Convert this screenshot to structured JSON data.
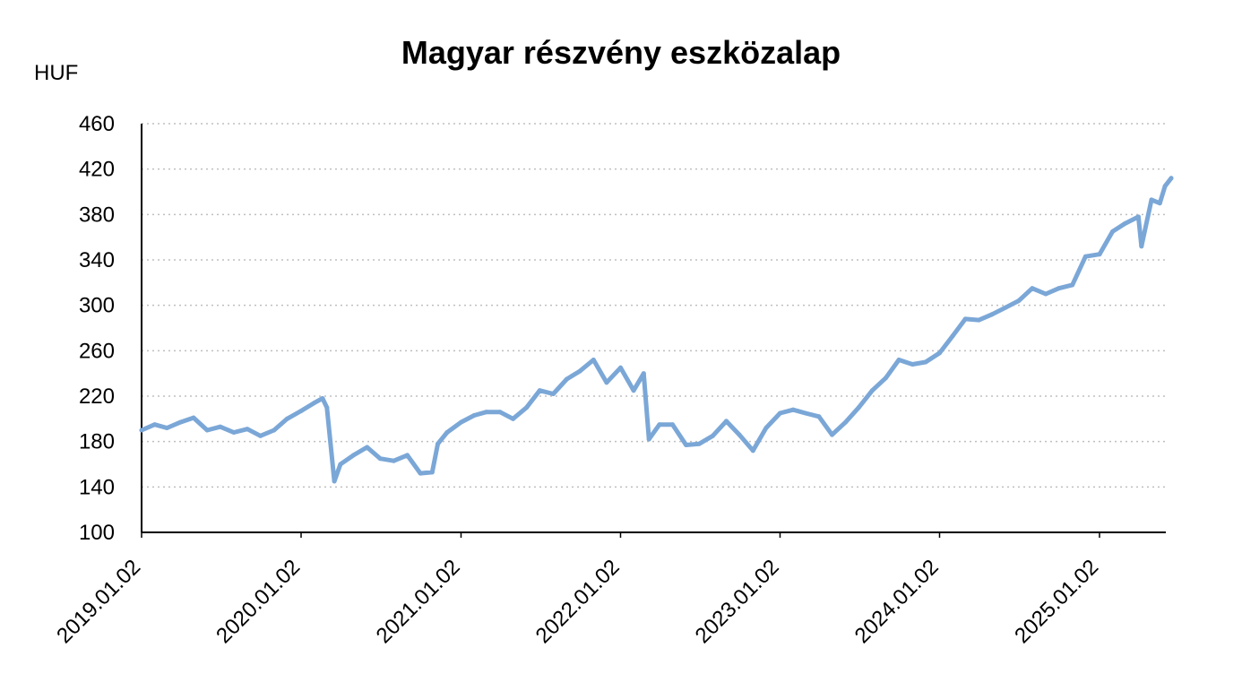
{
  "chart_data": {
    "type": "line",
    "title": "Magyar részvény eszközalap",
    "ylabel": "HUF",
    "xlabel": "",
    "ylim": [
      100,
      460
    ],
    "yticks": [
      100,
      140,
      180,
      220,
      260,
      300,
      340,
      380,
      420,
      460
    ],
    "x_tick_labels": [
      "2019.01.02",
      "2020.01.02",
      "2021.01.02",
      "2022.01.02",
      "2023.01.02",
      "2024.01.02",
      "2025.01.02"
    ],
    "grid": "horizontal dotted",
    "legend": "none",
    "line_color": "#7BA7D7",
    "series": [
      {
        "x": [
          "2019.01.02",
          "2019.02.01",
          "2019.03.01",
          "2019.04.01",
          "2019.05.01",
          "2019.06.01",
          "2019.07.01",
          "2019.08.01",
          "2019.09.01",
          "2019.10.01",
          "2019.11.01",
          "2019.12.01",
          "2020.01.02",
          "2020.02.01",
          "2020.02.20",
          "2020.03.01",
          "2020.03.18",
          "2020.04.01",
          "2020.05.01",
          "2020.06.01",
          "2020.07.01",
          "2020.08.01",
          "2020.09.01",
          "2020.10.01",
          "2020.10.28",
          "2020.11.10",
          "2020.12.01",
          "2021.01.02",
          "2021.02.01",
          "2021.03.01",
          "2021.04.01",
          "2021.05.01",
          "2021.06.01",
          "2021.07.01",
          "2021.08.01",
          "2021.09.01",
          "2021.10.01",
          "2021.11.01",
          "2021.12.01",
          "2022.01.02",
          "2022.02.01",
          "2022.02.24",
          "2022.03.08",
          "2022.04.01",
          "2022.05.01",
          "2022.06.01",
          "2022.07.01",
          "2022.08.01",
          "2022.09.01",
          "2022.10.01",
          "2022.11.01",
          "2022.12.01",
          "2023.01.02",
          "2023.02.01",
          "2023.03.01",
          "2023.04.01",
          "2023.05.01",
          "2023.06.01",
          "2023.07.01",
          "2023.08.01",
          "2023.09.01",
          "2023.10.01",
          "2023.11.01",
          "2023.12.01",
          "2024.01.02",
          "2024.02.01",
          "2024.03.01",
          "2024.04.01",
          "2024.05.01",
          "2024.06.01",
          "2024.07.01",
          "2024.08.01",
          "2024.09.01",
          "2024.10.01",
          "2024.11.01",
          "2024.12.01",
          "2025.01.02",
          "2025.02.01",
          "2025.03.01",
          "2025.04.01",
          "2025.04.08",
          "2025.05.01",
          "2025.05.20",
          "2025.06.01",
          "2025.06.15"
        ],
        "values": [
          190,
          195,
          192,
          197,
          201,
          190,
          193,
          188,
          191,
          185,
          190,
          200,
          207,
          214,
          218,
          210,
          145,
          160,
          168,
          175,
          165,
          163,
          168,
          152,
          153,
          178,
          188,
          197,
          203,
          206,
          206,
          200,
          210,
          225,
          222,
          235,
          242,
          252,
          232,
          245,
          225,
          240,
          182,
          195,
          195,
          177,
          178,
          185,
          198,
          186,
          172,
          192,
          205,
          208,
          205,
          202,
          186,
          197,
          210,
          225,
          236,
          252,
          248,
          250,
          258,
          273,
          288,
          287,
          292,
          298,
          304,
          315,
          310,
          315,
          318,
          343,
          345,
          365,
          372,
          378,
          352,
          393,
          390,
          405,
          412
        ]
      }
    ]
  }
}
